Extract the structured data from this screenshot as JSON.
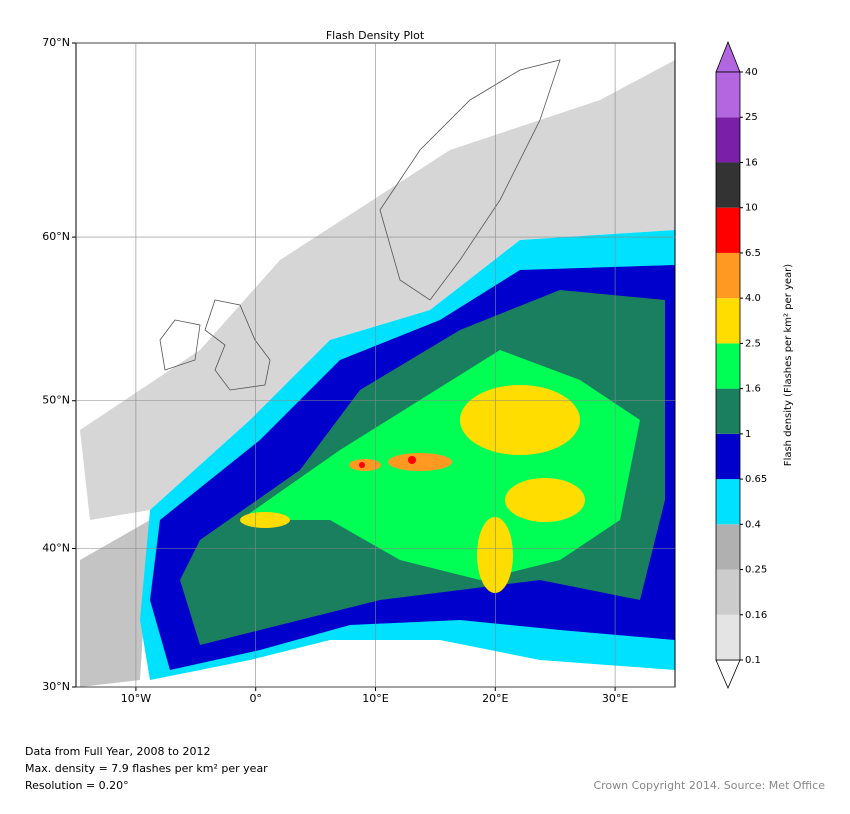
{
  "chart_data": {
    "type": "map",
    "title": "Flash Density Plot",
    "xlim": [
      -15,
      35
    ],
    "ylim": [
      30,
      70
    ],
    "xticks": [
      {
        "value": -10,
        "label": "10°W"
      },
      {
        "value": 0,
        "label": "0°"
      },
      {
        "value": 10,
        "label": "10°E"
      },
      {
        "value": 20,
        "label": "20°E"
      },
      {
        "value": 30,
        "label": "30°E"
      }
    ],
    "yticks": [
      {
        "value": 30,
        "label": "30°N"
      },
      {
        "value": 40,
        "label": "40°N"
      },
      {
        "value": 50,
        "label": "50°N"
      },
      {
        "value": 60,
        "label": "60°N"
      },
      {
        "value": 70,
        "label": "70°N"
      }
    ],
    "grid": true,
    "colorbar": {
      "label": "Flash density (Flashes per km² per year)",
      "levels": [
        0.1,
        0.16,
        0.25,
        0.4,
        0.65,
        1,
        1.6,
        2.5,
        {
          "value": 4,
          "label": "4.0"
        },
        6.5,
        10,
        16,
        25,
        40
      ],
      "colors": [
        "#e4e4e4",
        "#cccccc",
        "#b0b0b0",
        "#00e0ff",
        "#0000cc",
        "#1a7f5f",
        "#00ff55",
        "#ffdd00",
        "#ff9922",
        "#ff0000",
        "#333333",
        "#7a1fa8",
        "#b266e0"
      ],
      "over_color": "#b266e0",
      "under_color": "#ffffff"
    },
    "notes": [
      "Data from Full Year, 2008 to 2012",
      "Max. density = 7.9 flashes per km² per year",
      "Resolution = 0.20°"
    ],
    "credit": "Crown Copyright 2014. Source: Met Office"
  }
}
